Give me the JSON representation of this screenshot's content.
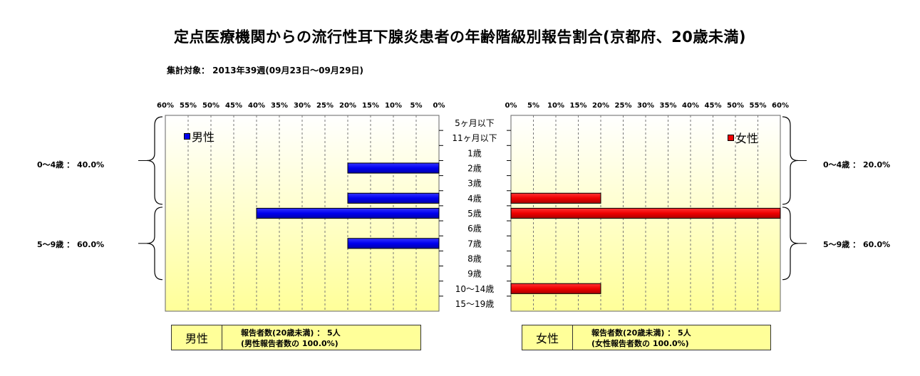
{
  "header": {
    "title": "定点医療機関からの流行性耳下腺炎患者の年齢階級別報告割合(京都府、20歳未満)",
    "subtitle": "集計対象： 2013年39週(09月23日～09月29日)"
  },
  "chart_data": {
    "type": "bar",
    "orientation": "horizontal",
    "layout": "population-pyramid",
    "categories": [
      "5ヶ月以下",
      "11ヶ月以下",
      "1歳",
      "2歳",
      "3歳",
      "4歳",
      "5歳",
      "6歳",
      "7歳",
      "8歳",
      "9歳",
      "10～14歳",
      "15～19歳"
    ],
    "x_ticks": [
      "0%",
      "5%",
      "10%",
      "15%",
      "20%",
      "25%",
      "30%",
      "35%",
      "40%",
      "45%",
      "50%",
      "55%",
      "60%"
    ],
    "xlim": [
      0,
      60
    ],
    "grid": true,
    "series": [
      {
        "name": "男性",
        "color": "#0000ee",
        "side": "left",
        "values": [
          0,
          0,
          0,
          20,
          0,
          20,
          40,
          0,
          20,
          0,
          0,
          0,
          0
        ]
      },
      {
        "name": "女性",
        "color": "#ee0000",
        "side": "right",
        "values": [
          0,
          0,
          0,
          0,
          0,
          20,
          60,
          0,
          0,
          0,
          0,
          20,
          0
        ]
      }
    ],
    "groups": {
      "male": [
        "0～4歳 ： 40.0%",
        "5～9歳 ： 60.0%"
      ],
      "female": [
        "0～4歳 ： 20.0%",
        "5～9歳 ： 60.0%"
      ]
    }
  },
  "legend": {
    "male": "男性",
    "female": "女性"
  },
  "summary": {
    "male": {
      "label": "男性",
      "line1": "報告者数(20歳未満) ： 5人",
      "line2": "(男性報告者数の 100.0%)"
    },
    "female": {
      "label": "女性",
      "line1": "報告者数(20歳未満) ： 5人",
      "line2": "(女性報告者数の 100.0%)"
    }
  },
  "colors": {
    "plot_bg_top": "#ffffff",
    "plot_bg_bottom": "#ffff99",
    "summary_bg": "#ffff99"
  }
}
